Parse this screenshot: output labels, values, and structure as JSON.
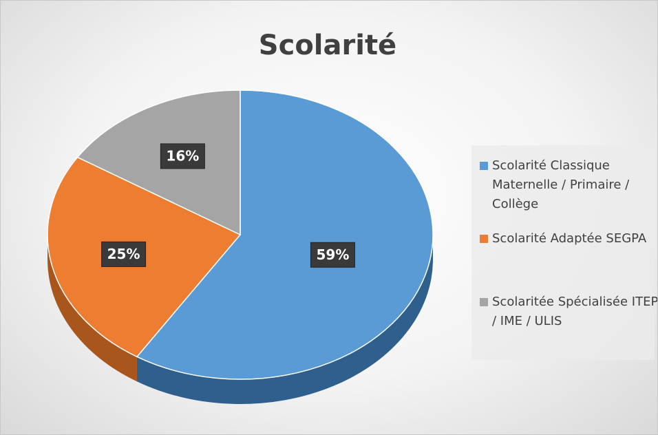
{
  "chart_data": {
    "type": "pie",
    "title": "Scolarité",
    "categories": [
      "Scolarité Classique Maternelle / Primaire / Collège",
      "Scolarité Adaptée SEGPA",
      "Scolaritée Spécialisée ITEP / IME / ULIS"
    ],
    "values": [
      59,
      25,
      16
    ],
    "value_labels": [
      "59%",
      "25%",
      "16%"
    ],
    "colors": [
      "#5b9bd5",
      "#ed7d31",
      "#a5a5a5"
    ],
    "side_colors": [
      "#2f5f8c",
      "#a9561c",
      "#6e6e6e"
    ],
    "legend": "right"
  }
}
